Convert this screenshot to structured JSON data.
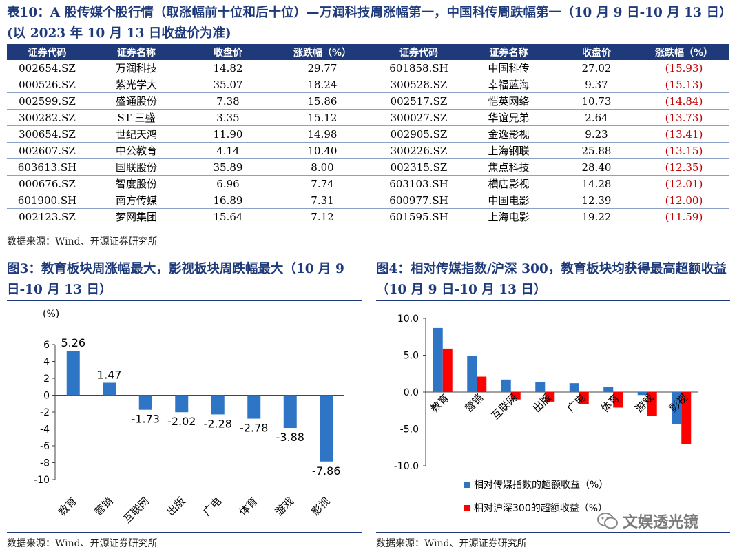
{
  "table_title": "表10：A 股传媒个股行情（取涨幅前十位和后十位）—万润科技周涨幅第一，中国科传周跌幅第一（10 月 9 日-10 月 13 日）(以 2023 年 10 月 13 日收盘价为准)",
  "table": {
    "headers": [
      "证券代码",
      "证券名称",
      "收盘价",
      "涨跌幅（%）",
      "证券代码",
      "证券名称",
      "收盘价",
      "涨跌幅（%）"
    ],
    "rows": [
      [
        "002654.SZ",
        "万润科技",
        "14.82",
        "29.77",
        "601858.SH",
        "中国科传",
        "27.02",
        "(15.93)"
      ],
      [
        "000526.SZ",
        "紫光学大",
        "35.07",
        "18.24",
        "300528.SZ",
        "幸福蓝海",
        "9.37",
        "(15.13)"
      ],
      [
        "002599.SZ",
        "盛通股份",
        "7.38",
        "15.86",
        "002517.SZ",
        "恺英网络",
        "10.73",
        "(14.84)"
      ],
      [
        "300282.SZ",
        "ST 三盛",
        "3.35",
        "15.12",
        "300027.SZ",
        "华谊兄弟",
        "2.64",
        "(13.73)"
      ],
      [
        "300654.SZ",
        "世纪天鸿",
        "11.90",
        "14.98",
        "002905.SZ",
        "金逸影视",
        "9.23",
        "(13.41)"
      ],
      [
        "002607.SZ",
        "中公教育",
        "4.14",
        "10.40",
        "300226.SZ",
        "上海钢联",
        "25.88",
        "(13.15)"
      ],
      [
        "603613.SH",
        "国联股份",
        "35.89",
        "8.00",
        "002315.SZ",
        "焦点科技",
        "28.40",
        "(12.35)"
      ],
      [
        "000676.SZ",
        "智度股份",
        "6.96",
        "7.74",
        "603103.SH",
        "横店影视",
        "14.28",
        "(12.01)"
      ],
      [
        "601900.SH",
        "南方传媒",
        "16.89",
        "7.31",
        "600977.SH",
        "中国电影",
        "12.39",
        "(12.00)"
      ],
      [
        "002123.SZ",
        "梦网集团",
        "15.64",
        "7.12",
        "601595.SH",
        "上海电影",
        "19.22",
        "(11.59)"
      ]
    ]
  },
  "source_table": "数据来源：Wind、开源证券研究所",
  "fig3_title": "图3：教育板块周涨幅最大，影视板块周跌幅最大（10 月 9 日-10 月 13 日）",
  "fig4_title": "图4：相对传媒指数/沪深 300，教育板块均获得最高超额收益（10 月 9 日-10 月 13 日）",
  "source_fig3": "数据来源：Wind、开源证券研究所",
  "source_fig4": "数据来源：Wind、开源证券研究所",
  "watermark": "文娱透光镜",
  "colors": {
    "navy": "#1f3a7a",
    "bar_blue": "#2e75c6",
    "bar_red": "#ff0000",
    "negative_text": "#c00000"
  },
  "chart_data": [
    {
      "type": "bar",
      "ylabel": "(%)",
      "ylim": [
        -10,
        6
      ],
      "yticks": [
        6,
        4,
        2,
        0,
        -2,
        -4,
        -6,
        -8,
        -10
      ],
      "categories": [
        "教育",
        "营销",
        "互联网",
        "出版",
        "广电",
        "体育",
        "游戏",
        "影视"
      ],
      "values": [
        5.26,
        1.47,
        -1.73,
        -2.02,
        -2.28,
        -2.78,
        -3.88,
        -7.86
      ],
      "data_labels": [
        "5.26",
        "1.47",
        "-1.73",
        "-2.02",
        "-2.28",
        "-2.78",
        "-3.88",
        "-7.86"
      ]
    },
    {
      "type": "bar",
      "ylim": [
        -10,
        10
      ],
      "yticks": [
        "10.0",
        "5.0",
        "0.0",
        "-5.0",
        "-10.0"
      ],
      "categories": [
        "教育",
        "营销",
        "互联网",
        "出版",
        "广电",
        "体育",
        "游戏",
        "影视"
      ],
      "legend": "bottom",
      "series": [
        {
          "name": "相对传媒指数的超额收益（%）",
          "values": [
            8.7,
            4.9,
            1.7,
            1.4,
            1.2,
            0.7,
            -0.4,
            -4.3
          ]
        },
        {
          "name": "相对沪深300的超额收益（%）",
          "values": [
            5.9,
            2.1,
            -1.0,
            -1.3,
            -1.6,
            -2.1,
            -3.2,
            -7.1
          ]
        }
      ]
    }
  ]
}
